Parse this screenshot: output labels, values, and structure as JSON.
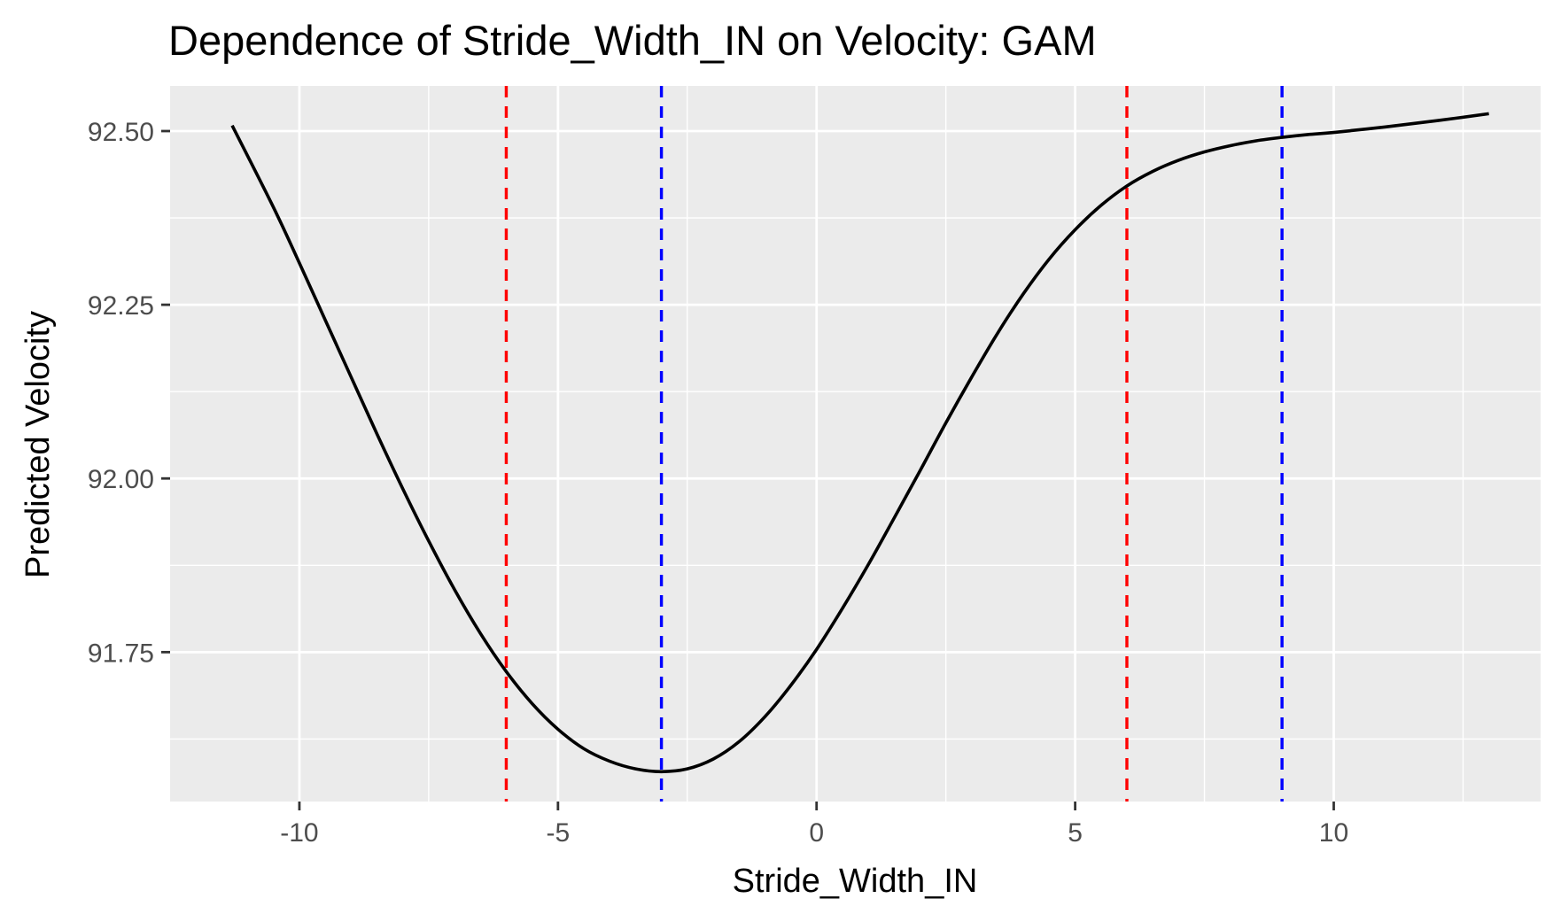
{
  "chart_data": {
    "type": "line",
    "title": "Dependence of Stride_Width_IN on Velocity: GAM",
    "xlabel": "Stride_Width_IN",
    "ylabel": "Predicted Velocity",
    "xlim": [
      -12.5,
      14
    ],
    "ylim": [
      91.535,
      92.565
    ],
    "x_ticks": [
      -10,
      -5,
      0,
      5,
      10
    ],
    "x_tick_labels": [
      "-10",
      "-5",
      "0",
      "5",
      "10"
    ],
    "y_ticks": [
      91.75,
      92.0,
      92.25,
      92.5
    ],
    "y_tick_labels": [
      "91.75",
      "92.00",
      "92.25",
      "92.50"
    ],
    "grid": true,
    "legend": "none",
    "series": [
      {
        "color": "#000000",
        "x": [
          -11.3,
          -10.5,
          -10,
          -9.5,
          -9,
          -8.5,
          -8,
          -7.5,
          -7,
          -6.5,
          -6,
          -5.5,
          -5,
          -4.5,
          -4,
          -3.5,
          -3,
          -2.5,
          -2,
          -1.5,
          -1,
          -0.5,
          0,
          0.5,
          1,
          1.5,
          2,
          2.5,
          3,
          3.5,
          4,
          4.5,
          5,
          5.5,
          6,
          6.5,
          7,
          7.5,
          8,
          8.5,
          9,
          9.5,
          10,
          11,
          12,
          13
        ],
        "y": [
          92.508,
          92.39,
          92.31,
          92.228,
          92.146,
          92.064,
          91.985,
          91.91,
          91.84,
          91.777,
          91.722,
          91.676,
          91.639,
          91.611,
          91.593,
          91.582,
          91.578,
          91.582,
          91.596,
          91.621,
          91.657,
          91.702,
          91.754,
          91.813,
          91.876,
          91.943,
          92.011,
          92.08,
          92.146,
          92.209,
          92.266,
          92.316,
          92.358,
          92.393,
          92.421,
          92.442,
          92.458,
          92.47,
          92.479,
          92.486,
          92.491,
          92.495,
          92.498,
          92.506,
          92.515,
          92.525
        ]
      }
    ],
    "vlines": [
      {
        "x": -6,
        "color": "#ff0000",
        "style": "dashed"
      },
      {
        "x": -3,
        "color": "#0000ff",
        "style": "dashed"
      },
      {
        "x": 6,
        "color": "#ff0000",
        "style": "dashed"
      },
      {
        "x": 9,
        "color": "#0000ff",
        "style": "dashed"
      }
    ],
    "colors": {
      "panel_background": "#ebebeb",
      "grid": "#ffffff",
      "axis_text": "#4d4d4d",
      "tick": "#333333"
    }
  }
}
